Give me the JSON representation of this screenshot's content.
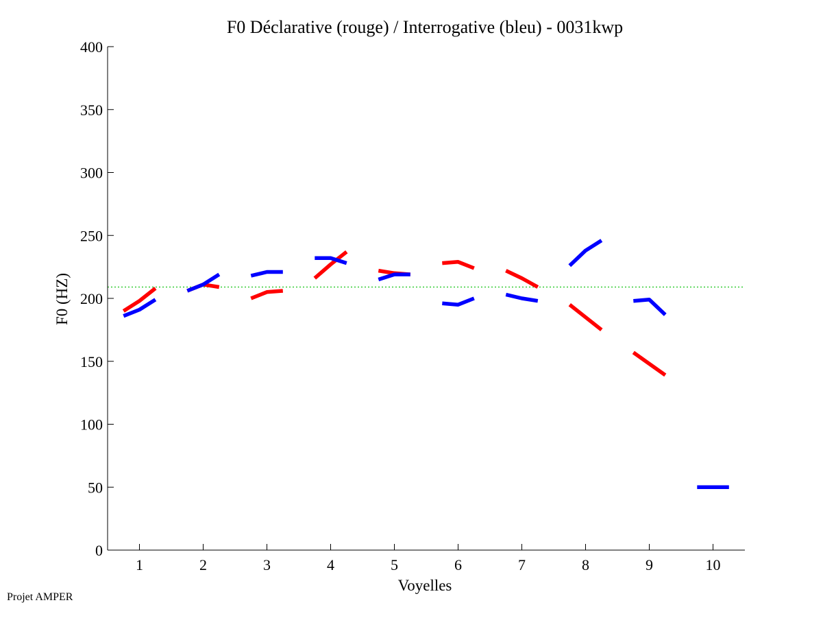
{
  "footer": {
    "credit": "Projet AMPER"
  },
  "chart_data": {
    "type": "line",
    "title": "F0 Déclarative (rouge) / Interrogative (bleu) - 0031kwp",
    "xlabel": "Voyelles",
    "ylabel": "F0 (HZ)",
    "xlim": [
      0.5,
      10.5
    ],
    "ylim": [
      0,
      400
    ],
    "xticks": [
      1,
      2,
      3,
      4,
      5,
      6,
      7,
      8,
      9,
      10
    ],
    "yticks": [
      0,
      50,
      100,
      150,
      200,
      250,
      300,
      350,
      400
    ],
    "reference_line": {
      "y": 209,
      "color": "#33cc33",
      "style": "dotted"
    },
    "series": [
      {
        "name": "Déclarative",
        "color": "#ff0000",
        "segments": [
          {
            "x": [
              0.75,
              1.0,
              1.25
            ],
            "y": [
              190,
              198,
              208
            ]
          },
          {
            "x": [
              1.75,
              2.0,
              2.25
            ],
            "y": [
              206,
              211,
              209
            ]
          },
          {
            "x": [
              2.75,
              3.0,
              3.25
            ],
            "y": [
              200,
              205,
              206
            ]
          },
          {
            "x": [
              3.75,
              4.0,
              4.25
            ],
            "y": [
              216,
              227,
              237
            ]
          },
          {
            "x": [
              4.75,
              5.0,
              5.25
            ],
            "y": [
              222,
              220,
              219
            ]
          },
          {
            "x": [
              5.75,
              6.0,
              6.25
            ],
            "y": [
              228,
              229,
              224
            ]
          },
          {
            "x": [
              6.75,
              7.0,
              7.25
            ],
            "y": [
              222,
              216,
              209
            ]
          },
          {
            "x": [
              7.75,
              8.0,
              8.25
            ],
            "y": [
              195,
              185,
              175
            ]
          },
          {
            "x": [
              8.75,
              9.0,
              9.25
            ],
            "y": [
              157,
              148,
              139
            ]
          }
        ]
      },
      {
        "name": "Interrogative",
        "color": "#0000ff",
        "segments": [
          {
            "x": [
              0.75,
              1.0,
              1.25
            ],
            "y": [
              186,
              191,
              199
            ]
          },
          {
            "x": [
              1.75,
              2.0,
              2.25
            ],
            "y": [
              206,
              211,
              219
            ]
          },
          {
            "x": [
              2.75,
              3.0,
              3.25
            ],
            "y": [
              218,
              221,
              221
            ]
          },
          {
            "x": [
              3.75,
              4.0,
              4.25
            ],
            "y": [
              232,
              232,
              228
            ]
          },
          {
            "x": [
              4.75,
              5.0,
              5.25
            ],
            "y": [
              215,
              219,
              219
            ]
          },
          {
            "x": [
              5.75,
              6.0,
              6.25
            ],
            "y": [
              196,
              195,
              200
            ]
          },
          {
            "x": [
              6.75,
              7.0,
              7.25
            ],
            "y": [
              203,
              200,
              198
            ]
          },
          {
            "x": [
              7.75,
              8.0,
              8.25
            ],
            "y": [
              226,
              238,
              246
            ]
          },
          {
            "x": [
              8.75,
              9.0,
              9.25
            ],
            "y": [
              198,
              199,
              187
            ]
          },
          {
            "x": [
              9.75,
              10.0,
              10.25
            ],
            "y": [
              50,
              50,
              50
            ]
          }
        ]
      }
    ]
  }
}
